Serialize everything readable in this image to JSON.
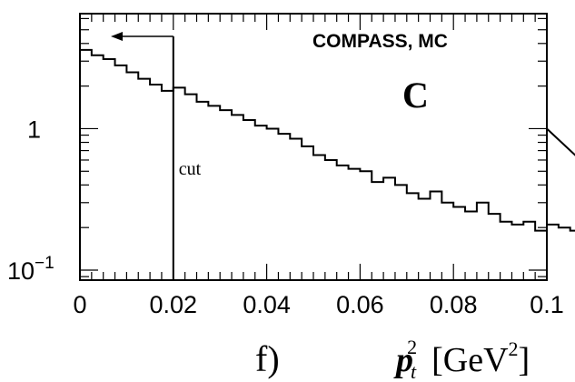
{
  "chart_data": {
    "type": "histogram",
    "title": "COMPASS, MC",
    "panel_letter": "C",
    "panel_label": "f)",
    "xlabel": {
      "symbol": "p",
      "sub": "t",
      "sup": "2",
      "unit": "[GeV",
      "unit_sup": "2",
      "unit_close": "]"
    },
    "ylabel": "",
    "xlim": [
      0,
      0.1
    ],
    "ylim": [
      0.085,
      6.5
    ],
    "y_scale": "log",
    "x_ticks": [
      {
        "value": 0,
        "label": "0"
      },
      {
        "value": 0.02,
        "label": "0.02"
      },
      {
        "value": 0.04,
        "label": "0.04"
      },
      {
        "value": 0.06,
        "label": "0.06"
      },
      {
        "value": 0.08,
        "label": "0.08"
      },
      {
        "value": 0.1,
        "label": "0.1"
      }
    ],
    "y_ticks": [
      {
        "value": 1,
        "label": "1"
      },
      {
        "value": 0.1,
        "label": "10",
        "exp": "−1"
      }
    ],
    "bin_width": 0.0025,
    "values": [
      3.6,
      3.3,
      3.1,
      2.8,
      2.5,
      2.25,
      2.05,
      1.85,
      1.95,
      1.75,
      1.55,
      1.45,
      1.35,
      1.25,
      1.15,
      1.05,
      1.0,
      0.92,
      0.85,
      0.75,
      0.65,
      0.6,
      0.55,
      0.52,
      0.5,
      0.42,
      0.45,
      0.4,
      0.35,
      0.32,
      0.36,
      0.3,
      0.28,
      0.26,
      0.3,
      0.25,
      0.22,
      0.21,
      0.22,
      0.19,
      0.21,
      0.2,
      0.19,
      0.2,
      0.18,
      0.17,
      0.16,
      0.19,
      0.15,
      0.17
    ],
    "cut": {
      "x": 0.02,
      "label": "cut"
    }
  }
}
